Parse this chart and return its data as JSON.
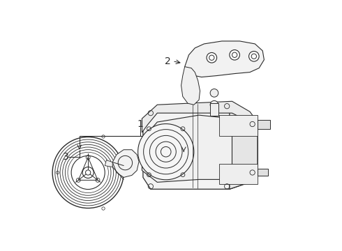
{
  "bg_color": "#ffffff",
  "line_color": "#2a2a2a",
  "label_color": "#111111",
  "figsize": [
    4.9,
    3.6
  ],
  "dpi": 100,
  "lw": 0.75
}
